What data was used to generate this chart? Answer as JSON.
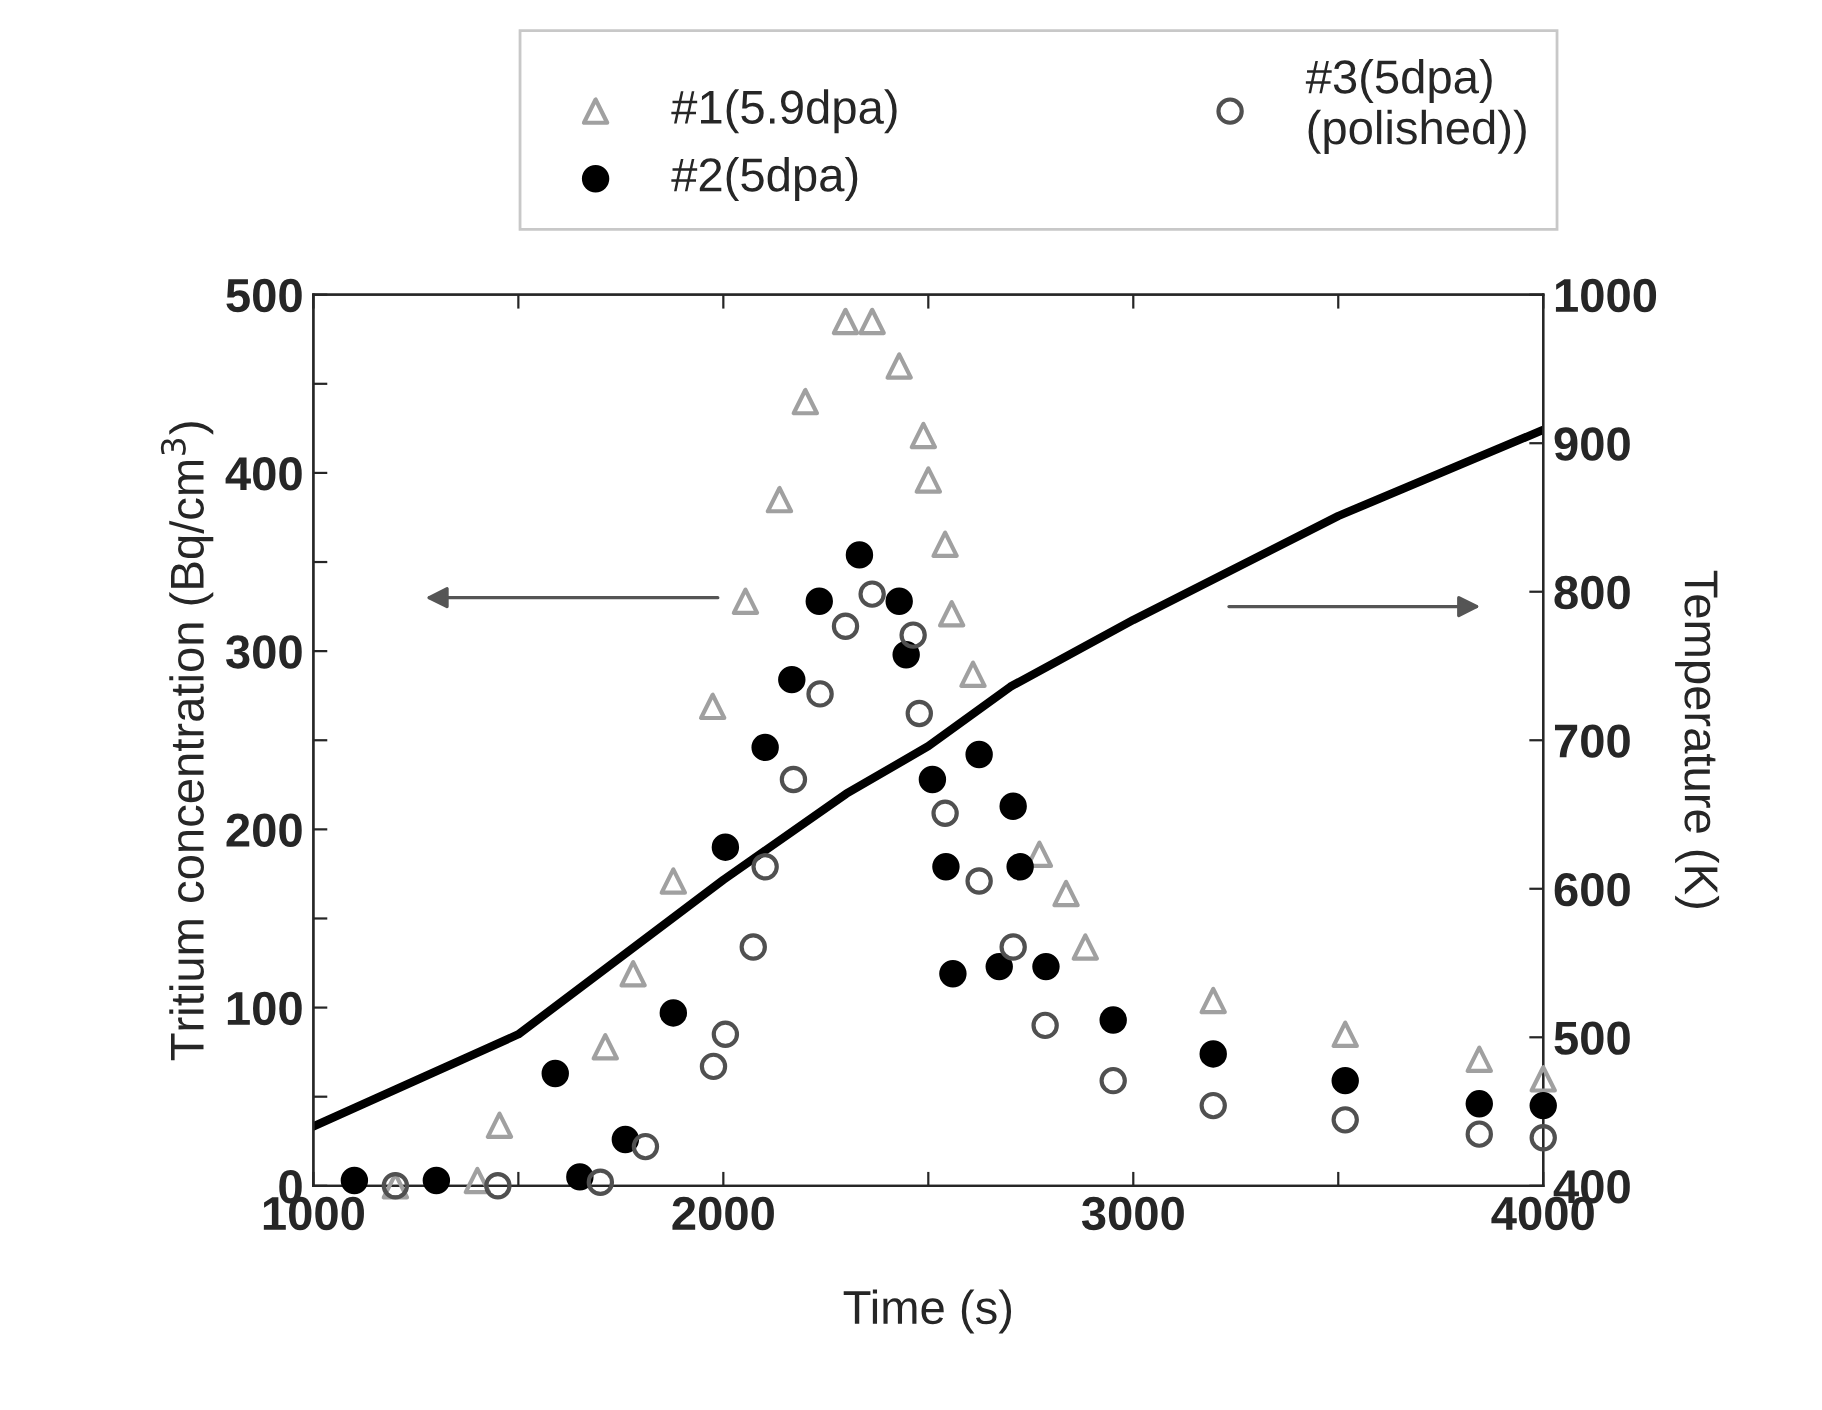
{
  "chart_data": {
    "type": "scatter",
    "xlabel": "Time (s)",
    "ylabel": "Tritium concentration (Bq/cm$^{3}$)",
    "y2label": "Temperature (K)",
    "xlim": [
      1000,
      4000
    ],
    "xticks": [
      1000,
      {
        "value": 1500,
        "label": null
      },
      2000,
      {
        "value": 2500,
        "label": null
      },
      3000,
      {
        "value": 3500,
        "label": null
      },
      4000
    ],
    "ylim": [
      0,
      500
    ],
    "yticks": [
      0,
      {
        "value": 50,
        "label": null
      },
      100,
      {
        "value": 150,
        "label": null
      },
      200,
      {
        "value": 250,
        "label": null
      },
      300,
      {
        "value": 350,
        "label": null
      },
      400,
      {
        "value": 450,
        "label": null
      },
      500
    ],
    "y2lim": [
      400,
      1000
    ],
    "y2ticks": [
      400,
      500,
      600,
      700,
      800,
      900,
      1000
    ],
    "grid": false,
    "legend": "top",
    "series": [
      {
        "name": "#1(5.9dpa)",
        "color": "#a0a0a0",
        "marker": "triangle",
        "x": [
          1200,
          1400,
          1454,
          1712,
          1780,
          1878,
          1974,
          2054,
          2137,
          2200,
          2298,
          2363,
          2429,
          2488,
          2500,
          2541,
          2557,
          2609,
          2771,
          2836,
          2883,
          3195,
          3517,
          3844,
          4000
        ],
        "values": [
          0,
          3,
          34,
          78,
          119,
          171,
          269,
          328,
          385,
          440,
          485,
          485,
          460,
          421,
          396,
          360,
          321,
          287,
          186,
          164,
          134,
          104,
          85,
          71,
          60
        ]
      },
      {
        "name": "#2(5dpa)",
        "color": "#000000",
        "marker": "circle",
        "x": [
          1100,
          1300,
          1590,
          1650,
          1761,
          1878,
          2005,
          2102,
          2167,
          2234,
          2332,
          2429,
          2446,
          2510,
          2543,
          2560,
          2624,
          2673,
          2707,
          2724,
          2787,
          2951,
          3195,
          3517,
          3844,
          4000
        ],
        "values": [
          3,
          3,
          63,
          5,
          26,
          97,
          190,
          246,
          284,
          328,
          354,
          328,
          298,
          228,
          179,
          119,
          242,
          123,
          213,
          179,
          123,
          93,
          74,
          59,
          46,
          45
        ]
      },
      {
        "name": "#3(5dpa)\n(polished))",
        "color": "#505050",
        "marker": "circle",
        "x": [
          1200,
          1450,
          1700,
          1810,
          1976,
          2005,
          2073,
          2102,
          2171,
          2236,
          2298,
          2363,
          2463,
          2478,
          2541,
          2624,
          2707,
          2785,
          2951,
          3195,
          3517,
          3844,
          4000
        ],
        "values": [
          0,
          0,
          2,
          22,
          67,
          85,
          134,
          179,
          228,
          276,
          314,
          332,
          309,
          265,
          209,
          171,
          134,
          90,
          59,
          45,
          37,
          29,
          27
        ]
      },
      {
        "type": "line",
        "axis": "y2",
        "color": "#000000",
        "x": [
          1000,
          1500,
          2000,
          2300,
          2500,
          2700,
          3000,
          3500,
          4000
        ],
        "values": [
          440,
          502,
          606,
          664,
          696,
          736,
          781,
          851,
          909
        ]
      }
    ]
  }
}
